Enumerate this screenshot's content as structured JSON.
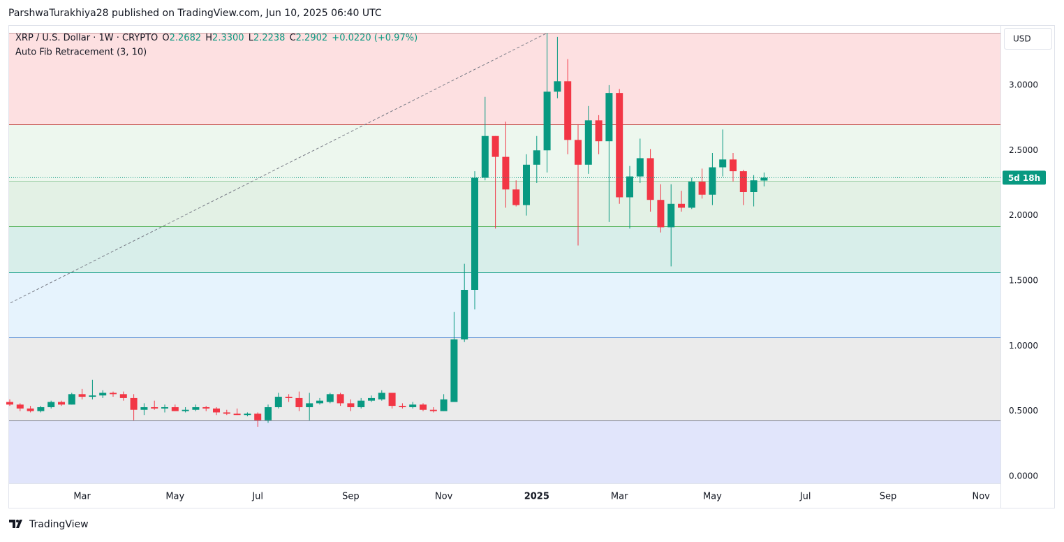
{
  "chart_data": {
    "type": "candlestick",
    "title": "ParshwaTurakhiya28 published on TradingView.com, Jun 10, 2025 06:40 UTC",
    "legend": {
      "symbol": "XRP / U.S. Dollar · 1W · CRYPTO",
      "o_label": "O",
      "open": "2.2682",
      "h_label": "H",
      "high": "2.3300",
      "l_label": "L",
      "low": "2.2238",
      "c_label": "C",
      "close": "2.2902",
      "change": "+0.0220 (+0.97%)",
      "indicator": "Auto Fib Retracement (3, 10)"
    },
    "currency": "USD",
    "countdown": "5d 18h",
    "brand": "TradingView",
    "up_color": "#089981",
    "down_color": "#f23645",
    "categories": [
      null,
      null,
      null,
      null,
      null,
      null,
      null,
      "Mar",
      null,
      null,
      null,
      null,
      null,
      null,
      null,
      null,
      "May",
      null,
      null,
      null,
      null,
      null,
      null,
      null,
      "Jul",
      null,
      null,
      null,
      null,
      null,
      null,
      null,
      null,
      "Sep",
      null,
      null,
      null,
      null,
      null,
      null,
      null,
      null,
      "Nov",
      null,
      null,
      null,
      null,
      null,
      null,
      null,
      null,
      "2025",
      null,
      null,
      null,
      null,
      null,
      null,
      null,
      "Mar",
      null,
      null,
      null,
      null,
      null,
      null,
      null,
      null,
      "May",
      null,
      null,
      null,
      null,
      null,
      null,
      null,
      null,
      "Jul",
      null,
      null,
      null,
      null,
      null,
      null,
      null,
      "Sep",
      null,
      null,
      null,
      null,
      null,
      null,
      null,
      null,
      "Nov",
      null
    ],
    "open": [
      0.57,
      0.55,
      0.52,
      0.5,
      0.53,
      0.57,
      0.55,
      0.63,
      0.61,
      0.62,
      0.64,
      0.63,
      0.6,
      0.51,
      0.53,
      0.52,
      0.53,
      0.5,
      0.51,
      0.53,
      0.52,
      0.49,
      0.48,
      0.47,
      0.48,
      0.43,
      0.53,
      0.61,
      0.6,
      0.53,
      0.56,
      0.57,
      0.63,
      0.56,
      0.53,
      0.58,
      0.59,
      0.64,
      0.54,
      0.53,
      0.55,
      0.51,
      0.5,
      0.57,
      1.05,
      1.43,
      2.29,
      2.61,
      2.45,
      2.2,
      2.08,
      2.39,
      2.5,
      2.95,
      3.03,
      2.58,
      2.39,
      2.73,
      2.57,
      2.94,
      2.14,
      2.3,
      2.44,
      2.12,
      1.91,
      2.09,
      2.06,
      2.26,
      2.16,
      2.37,
      2.43,
      2.34,
      2.18,
      2.2682,
      null,
      null,
      null,
      null,
      null,
      null,
      null,
      null,
      null,
      null,
      null,
      null,
      null,
      null,
      null,
      null,
      null,
      null,
      null,
      null,
      null,
      null
    ],
    "high": [
      0.59,
      0.56,
      0.54,
      0.54,
      0.58,
      0.58,
      0.64,
      0.67,
      0.74,
      0.66,
      0.65,
      0.65,
      0.63,
      0.56,
      0.58,
      0.55,
      0.55,
      0.53,
      0.55,
      0.54,
      0.53,
      0.51,
      0.52,
      0.49,
      0.49,
      0.55,
      0.64,
      0.63,
      0.65,
      0.64,
      0.6,
      0.64,
      0.64,
      0.59,
      0.6,
      0.62,
      0.66,
      0.64,
      0.56,
      0.57,
      0.56,
      0.53,
      0.63,
      1.26,
      1.63,
      2.34,
      2.91,
      2.61,
      2.72,
      2.27,
      2.47,
      2.61,
      3.4,
      3.37,
      3.2,
      2.7,
      2.84,
      2.77,
      3.0,
      2.97,
      2.38,
      2.59,
      2.51,
      2.24,
      2.24,
      2.19,
      2.29,
      2.36,
      2.48,
      2.66,
      2.48,
      2.35,
      2.31,
      2.33,
      null,
      null,
      null,
      null,
      null,
      null,
      null,
      null,
      null,
      null,
      null,
      null,
      null,
      null,
      null,
      null,
      null,
      null,
      null,
      null,
      null,
      null
    ],
    "low": [
      0.54,
      0.5,
      0.49,
      0.49,
      0.52,
      0.54,
      0.55,
      0.59,
      0.59,
      0.6,
      0.61,
      0.58,
      0.43,
      0.47,
      0.51,
      0.49,
      0.5,
      0.49,
      0.5,
      0.5,
      0.47,
      0.47,
      0.47,
      0.46,
      0.38,
      0.41,
      0.52,
      0.57,
      0.5,
      0.43,
      0.55,
      0.56,
      0.54,
      0.5,
      0.52,
      0.57,
      0.58,
      0.52,
      0.52,
      0.52,
      0.5,
      0.49,
      0.5,
      0.57,
      1.03,
      1.28,
      2.27,
      1.9,
      2.06,
      2.07,
      2.0,
      2.25,
      2.33,
      2.9,
      2.47,
      1.77,
      2.32,
      2.47,
      1.95,
      2.09,
      1.9,
      2.25,
      2.03,
      1.87,
      1.61,
      2.03,
      2.05,
      2.13,
      2.08,
      2.3,
      2.26,
      2.08,
      2.07,
      2.2238,
      null,
      null,
      null,
      null,
      null,
      null,
      null,
      null,
      null,
      null,
      null,
      null,
      null,
      null,
      null,
      null,
      null,
      null,
      null,
      null,
      null,
      null
    ],
    "close": [
      0.55,
      0.52,
      0.5,
      0.53,
      0.57,
      0.55,
      0.63,
      0.61,
      0.62,
      0.64,
      0.63,
      0.6,
      0.51,
      0.53,
      0.52,
      0.53,
      0.5,
      0.51,
      0.53,
      0.52,
      0.49,
      0.48,
      0.47,
      0.48,
      0.43,
      0.53,
      0.61,
      0.6,
      0.53,
      0.56,
      0.58,
      0.63,
      0.56,
      0.53,
      0.58,
      0.6,
      0.64,
      0.54,
      0.53,
      0.55,
      0.51,
      0.5,
      0.59,
      1.05,
      1.43,
      2.29,
      2.61,
      2.45,
      2.2,
      2.08,
      2.39,
      2.5,
      2.95,
      3.03,
      2.58,
      2.39,
      2.73,
      2.57,
      2.94,
      2.14,
      2.3,
      2.44,
      2.12,
      1.91,
      2.09,
      2.06,
      2.26,
      2.16,
      2.37,
      2.43,
      2.34,
      2.18,
      2.27,
      2.2902,
      null,
      null,
      null,
      null,
      null,
      null,
      null,
      null,
      null,
      null,
      null,
      null,
      null,
      null,
      null,
      null,
      null,
      null,
      null,
      null,
      null,
      null
    ],
    "ylim": [
      -0.054,
      3.455
    ],
    "yticks": [
      {
        "value": 0,
        "label": "0.0000"
      },
      {
        "value": 0.5,
        "label": "0.5000"
      },
      {
        "value": 1,
        "label": "1.0000"
      },
      {
        "value": 1.5,
        "label": "1.5000"
      },
      {
        "value": 2,
        "label": "2.0000"
      },
      {
        "value": 2.5,
        "label": "2.5000"
      },
      {
        "value": 3,
        "label": "3.0000"
      }
    ],
    "fib_levels": [
      {
        "value": 3.4,
        "line": "#c9a0a4",
        "fill": "#fde0e1"
      },
      {
        "value": 2.7,
        "line": "#c4524c",
        "fill": "#edf7ee"
      },
      {
        "value": 2.265,
        "line": "#9fd0a8",
        "fill": "#e3f1e5"
      },
      {
        "value": 1.915,
        "line": "#4caf50",
        "fill": "#d8eeea"
      },
      {
        "value": 1.565,
        "line": "#089981",
        "fill": "#e6f3fd"
      },
      {
        "value": 1.067,
        "line": "#5b8fd6",
        "fill": "#ebebeb"
      },
      {
        "value": 0.43,
        "line": "#787b86",
        "fill": "#e1e5fb"
      }
    ],
    "trend_line": {
      "start": 1.33,
      "end": 3.4
    }
  }
}
